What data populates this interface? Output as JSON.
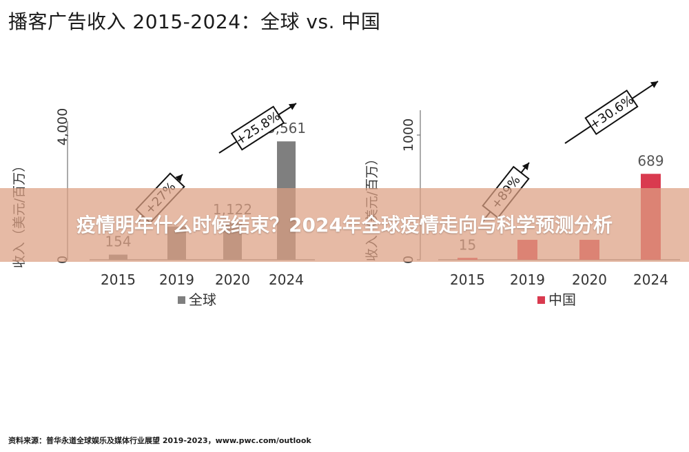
{
  "title": "播客广告收入 2015-2024：全球 vs. 中国",
  "overlay_text": "疫情明年什么时候结束？2024年全球疫情走向与科学预测分析",
  "source": "资料来源：普华永道全球娱乐及媒体行业展望 2019-2023，www.pwc.com/outlook",
  "colors": {
    "global": "#7f7f7f",
    "china": "#d93a4f",
    "axis": "#333333",
    "text": "#444444"
  },
  "chart_data": [
    {
      "type": "bar",
      "ylabel": "收入（美元/百万）",
      "ylim": [
        0,
        4000
      ],
      "yticks": [
        "0",
        "4,000"
      ],
      "categories": [
        "2015",
        "2019",
        "2020",
        "2024"
      ],
      "series": [
        {
          "name": "全球",
          "values": [
            154,
            1000,
            1122,
            3561
          ]
        }
      ],
      "data_labels": [
        "154",
        "",
        "1,122",
        "3,561"
      ],
      "annotations": [
        "+27%",
        "+25.8%"
      ],
      "legend": "bottom"
    },
    {
      "type": "bar",
      "ylabel": "收入（美元/百万）",
      "ylim": [
        0,
        1000
      ],
      "yticks": [
        "0",
        "1000"
      ],
      "categories": [
        "2015",
        "2019",
        "2020",
        "2024"
      ],
      "series": [
        {
          "name": "中国",
          "values": [
            15,
            160,
            160,
            689
          ]
        }
      ],
      "data_labels": [
        "15",
        "",
        "",
        "689"
      ],
      "annotations": [
        "+89%",
        "+30.6%"
      ],
      "legend": "bottom"
    }
  ]
}
